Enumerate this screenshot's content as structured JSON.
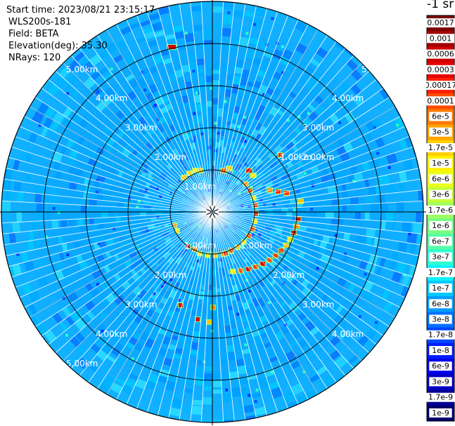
{
  "header": {
    "start_time": "Start time: 2023/08/21 23:15:17",
    "instrument": "WLS200s-181",
    "field": "Field: BETA",
    "elevation": "Elevation(deg): 35.30",
    "nrays": "NRays: 120"
  },
  "ppi": {
    "n_rays": 120,
    "range_labels": [
      "1.00km",
      "2.00km",
      "3.00km",
      "4.00km",
      "5.00km"
    ]
  },
  "colorbar": {
    "unit_label": "-1 sr",
    "tick_labels": [
      "0.0017",
      "0.001",
      "0.0006",
      "0.0003",
      "0.00017",
      "0.0001",
      "6e-5",
      "3e-5",
      "1.7e-5",
      "1e-5",
      "6e-6",
      "3e-6",
      "1.7e-6",
      "1e-6",
      "6e-7",
      "3e-7",
      "1.7e-7",
      "1e-7",
      "6e-8",
      "3e-8",
      "1.7e-8",
      "1e-8",
      "6e-9",
      "3e-9",
      "1.7e-9",
      "1e-9"
    ],
    "colors": [
      "#7a0000",
      "#a40000",
      "#cc0000",
      "#e80000",
      "#ff2000",
      "#ff4b00",
      "#ff7a00",
      "#ffa500",
      "#ffd000",
      "#fff200",
      "#e8ff18",
      "#c4ff3b",
      "#9dff5f",
      "#79ff82",
      "#54ffa6",
      "#2dffd0",
      "#0ff0ff",
      "#00c8ff",
      "#009cff",
      "#0070ff",
      "#0046ff",
      "#001cff",
      "#0000e8",
      "#0000c0",
      "#000094",
      "#00006a"
    ]
  }
}
